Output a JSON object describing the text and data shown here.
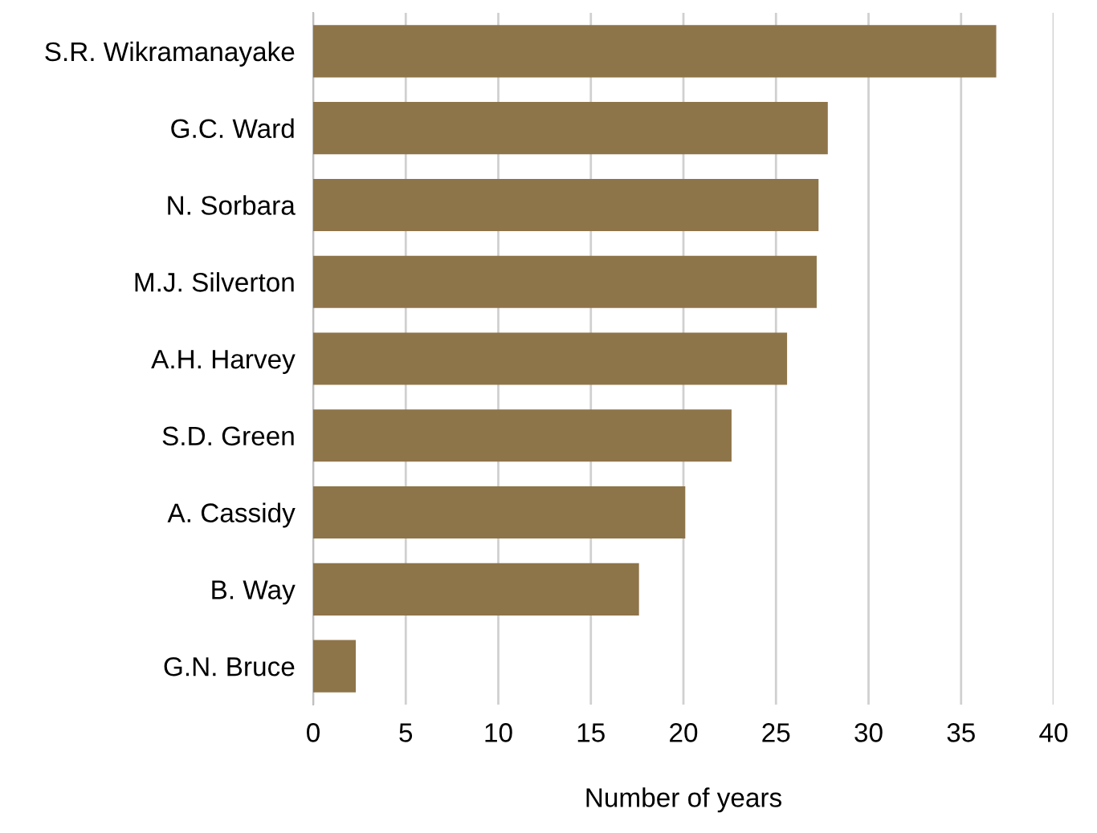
{
  "chart_data": {
    "type": "bar",
    "orientation": "horizontal",
    "categories": [
      "S.R. Wikramanayake",
      "G.C. Ward",
      "N. Sorbara",
      "M.J. Silverton",
      "A.H. Harvey",
      "S.D. Green",
      "A. Cassidy",
      "B. Way",
      "G.N. Bruce"
    ],
    "values": [
      36.9,
      27.8,
      27.3,
      27.2,
      25.6,
      22.6,
      20.1,
      17.6,
      2.3
    ],
    "color": "#8e7449",
    "xlim": [
      0,
      40
    ],
    "xticks": [
      0,
      5,
      10,
      15,
      20,
      25,
      30,
      35,
      40
    ],
    "xlabel": "Number of years",
    "grid": "x"
  }
}
